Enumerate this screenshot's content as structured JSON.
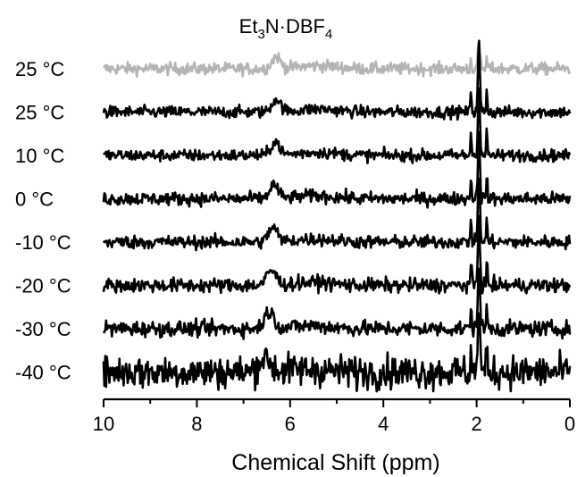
{
  "chart_data": {
    "type": "line",
    "title_base": "Et",
    "title_sub1": "3",
    "title_mid": "N·DBF",
    "title_sub2": "4",
    "xlabel": "Chemical Shift (ppm)",
    "xlim": [
      10,
      0
    ],
    "xticks": [
      {
        "value": 10,
        "label": "10"
      },
      {
        "value": 8,
        "label": "8"
      },
      {
        "value": 6,
        "label": "6"
      },
      {
        "value": 4,
        "label": "4"
      },
      {
        "value": 2,
        "label": "2"
      },
      {
        "value": 0,
        "label": "0"
      }
    ],
    "grid": false,
    "stacked": true,
    "series": [
      {
        "name": "25 °C",
        "temp_value": "25",
        "unit": "°C",
        "color": "#b4b4b4",
        "peak_ppm": 6.3,
        "peak_height": 0.6,
        "peak_width": 0.13,
        "noise": 0.2,
        "ref_ppm": 1.95,
        "ref_height": 1.4
      },
      {
        "name": "25 °C",
        "temp_value": "25",
        "unit": "°C",
        "color": "#000000",
        "peak_ppm": 6.3,
        "peak_height": 0.65,
        "peak_width": 0.13,
        "noise": 0.2,
        "ref_ppm": 1.95,
        "ref_height": 3.5
      },
      {
        "name": "10 °C",
        "temp_value": "10",
        "unit": "°C",
        "color": "#000000",
        "peak_ppm": 6.32,
        "peak_height": 0.7,
        "peak_width": 0.13,
        "noise": 0.2,
        "ref_ppm": 1.95,
        "ref_height": 3.5
      },
      {
        "name": "0 °C",
        "temp_value": "0",
        "unit": "°C",
        "color": "#000000",
        "peak_ppm": 6.35,
        "peak_height": 0.7,
        "peak_width": 0.13,
        "noise": 0.22,
        "ref_ppm": 1.95,
        "ref_height": 3.5
      },
      {
        "name": "-10 °C",
        "temp_value": "-10",
        "unit": "°C",
        "color": "#000000",
        "peak_ppm": 6.37,
        "peak_height": 0.75,
        "peak_width": 0.13,
        "noise": 0.22,
        "ref_ppm": 1.95,
        "ref_height": 3.5
      },
      {
        "name": "-20 °C",
        "temp_value": "-20",
        "unit": "°C",
        "color": "#000000",
        "peak_ppm": 6.4,
        "peak_height": 0.75,
        "peak_width": 0.14,
        "noise": 0.24,
        "ref_ppm": 1.95,
        "ref_height": 3.5
      },
      {
        "name": "-30 °C",
        "temp_value": "-30",
        "unit": "°C",
        "color": "#000000",
        "peak_ppm": 6.45,
        "peak_height": 0.85,
        "peak_width": 0.15,
        "noise": 0.26,
        "ref_ppm": 1.95,
        "ref_height": 3.5
      },
      {
        "name": "-40 °C",
        "temp_value": "-40",
        "unit": "°C",
        "color": "#000000",
        "peak_ppm": 6.55,
        "peak_height": 0.7,
        "peak_width": 0.18,
        "noise": 0.55,
        "ref_ppm": 1.95,
        "ref_height": 3.5
      }
    ]
  }
}
